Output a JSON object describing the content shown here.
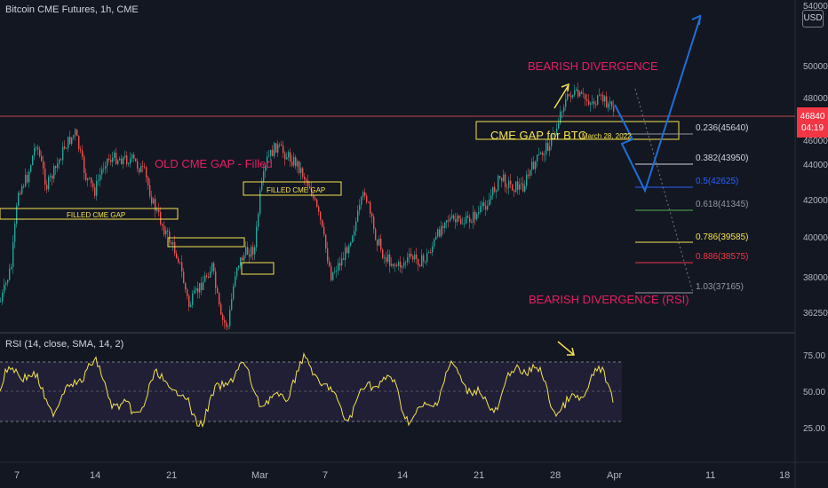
{
  "header": {
    "title": "Bitcoin CME Futures, 1h, CME",
    "currency": "USD",
    "last_price": "46840",
    "countdown": "04:19",
    "top_tick": "54000"
  },
  "price_axis": {
    "ticks": [
      "50000",
      "48000",
      "46000",
      "44000",
      "42000",
      "40000",
      "38000",
      "36250"
    ]
  },
  "rsi_axis": {
    "ticks": [
      "75.00",
      "50.00",
      "25.00"
    ]
  },
  "time_axis": {
    "ticks": [
      "7",
      "14",
      "21",
      "Mar",
      "7",
      "14",
      "21",
      "28",
      "Apr",
      "11",
      "18"
    ]
  },
  "indicator": {
    "label": "RSI (14, close, SMA, 14, 2)",
    "overbought": 70,
    "middle": 50,
    "oversold": 30
  },
  "annotations": {
    "bearish_divergence": "BEARISH DIVERGENCE",
    "bearish_divergence_rsi": "BEARISH DIVERGENCE (RSI)",
    "old_gap": "OLD CME GAP - Filled",
    "filled_gap_1": "FILLED CME GAP",
    "filled_gap_2": "FILLED CME GAP",
    "cme_gap_btc": "CME GAP for BTC",
    "gap_date": "March 28, 2022"
  },
  "fibonacci": [
    {
      "label": "0.236(45640)",
      "color": "#9598a1"
    },
    {
      "label": "0.382(43950)",
      "color": "#d1d4dc"
    },
    {
      "label": "0.5(42625)",
      "color": "#2962ff"
    },
    {
      "label": "0.618(41345)",
      "color": "#4caf50"
    },
    {
      "label": "0.786(39585)",
      "color": "#f7e34f"
    },
    {
      "label": "0.886(38575)",
      "color": "#f23645"
    },
    {
      "label": "1.03(37165)",
      "color": "#9598a1"
    }
  ],
  "colors": {
    "background": "#131722",
    "up": "#26a69a",
    "down": "#ef5350",
    "rsi_line": "#f7e34f",
    "annotation_pink": "#e91e63",
    "projection": "#1e6fd9"
  }
}
